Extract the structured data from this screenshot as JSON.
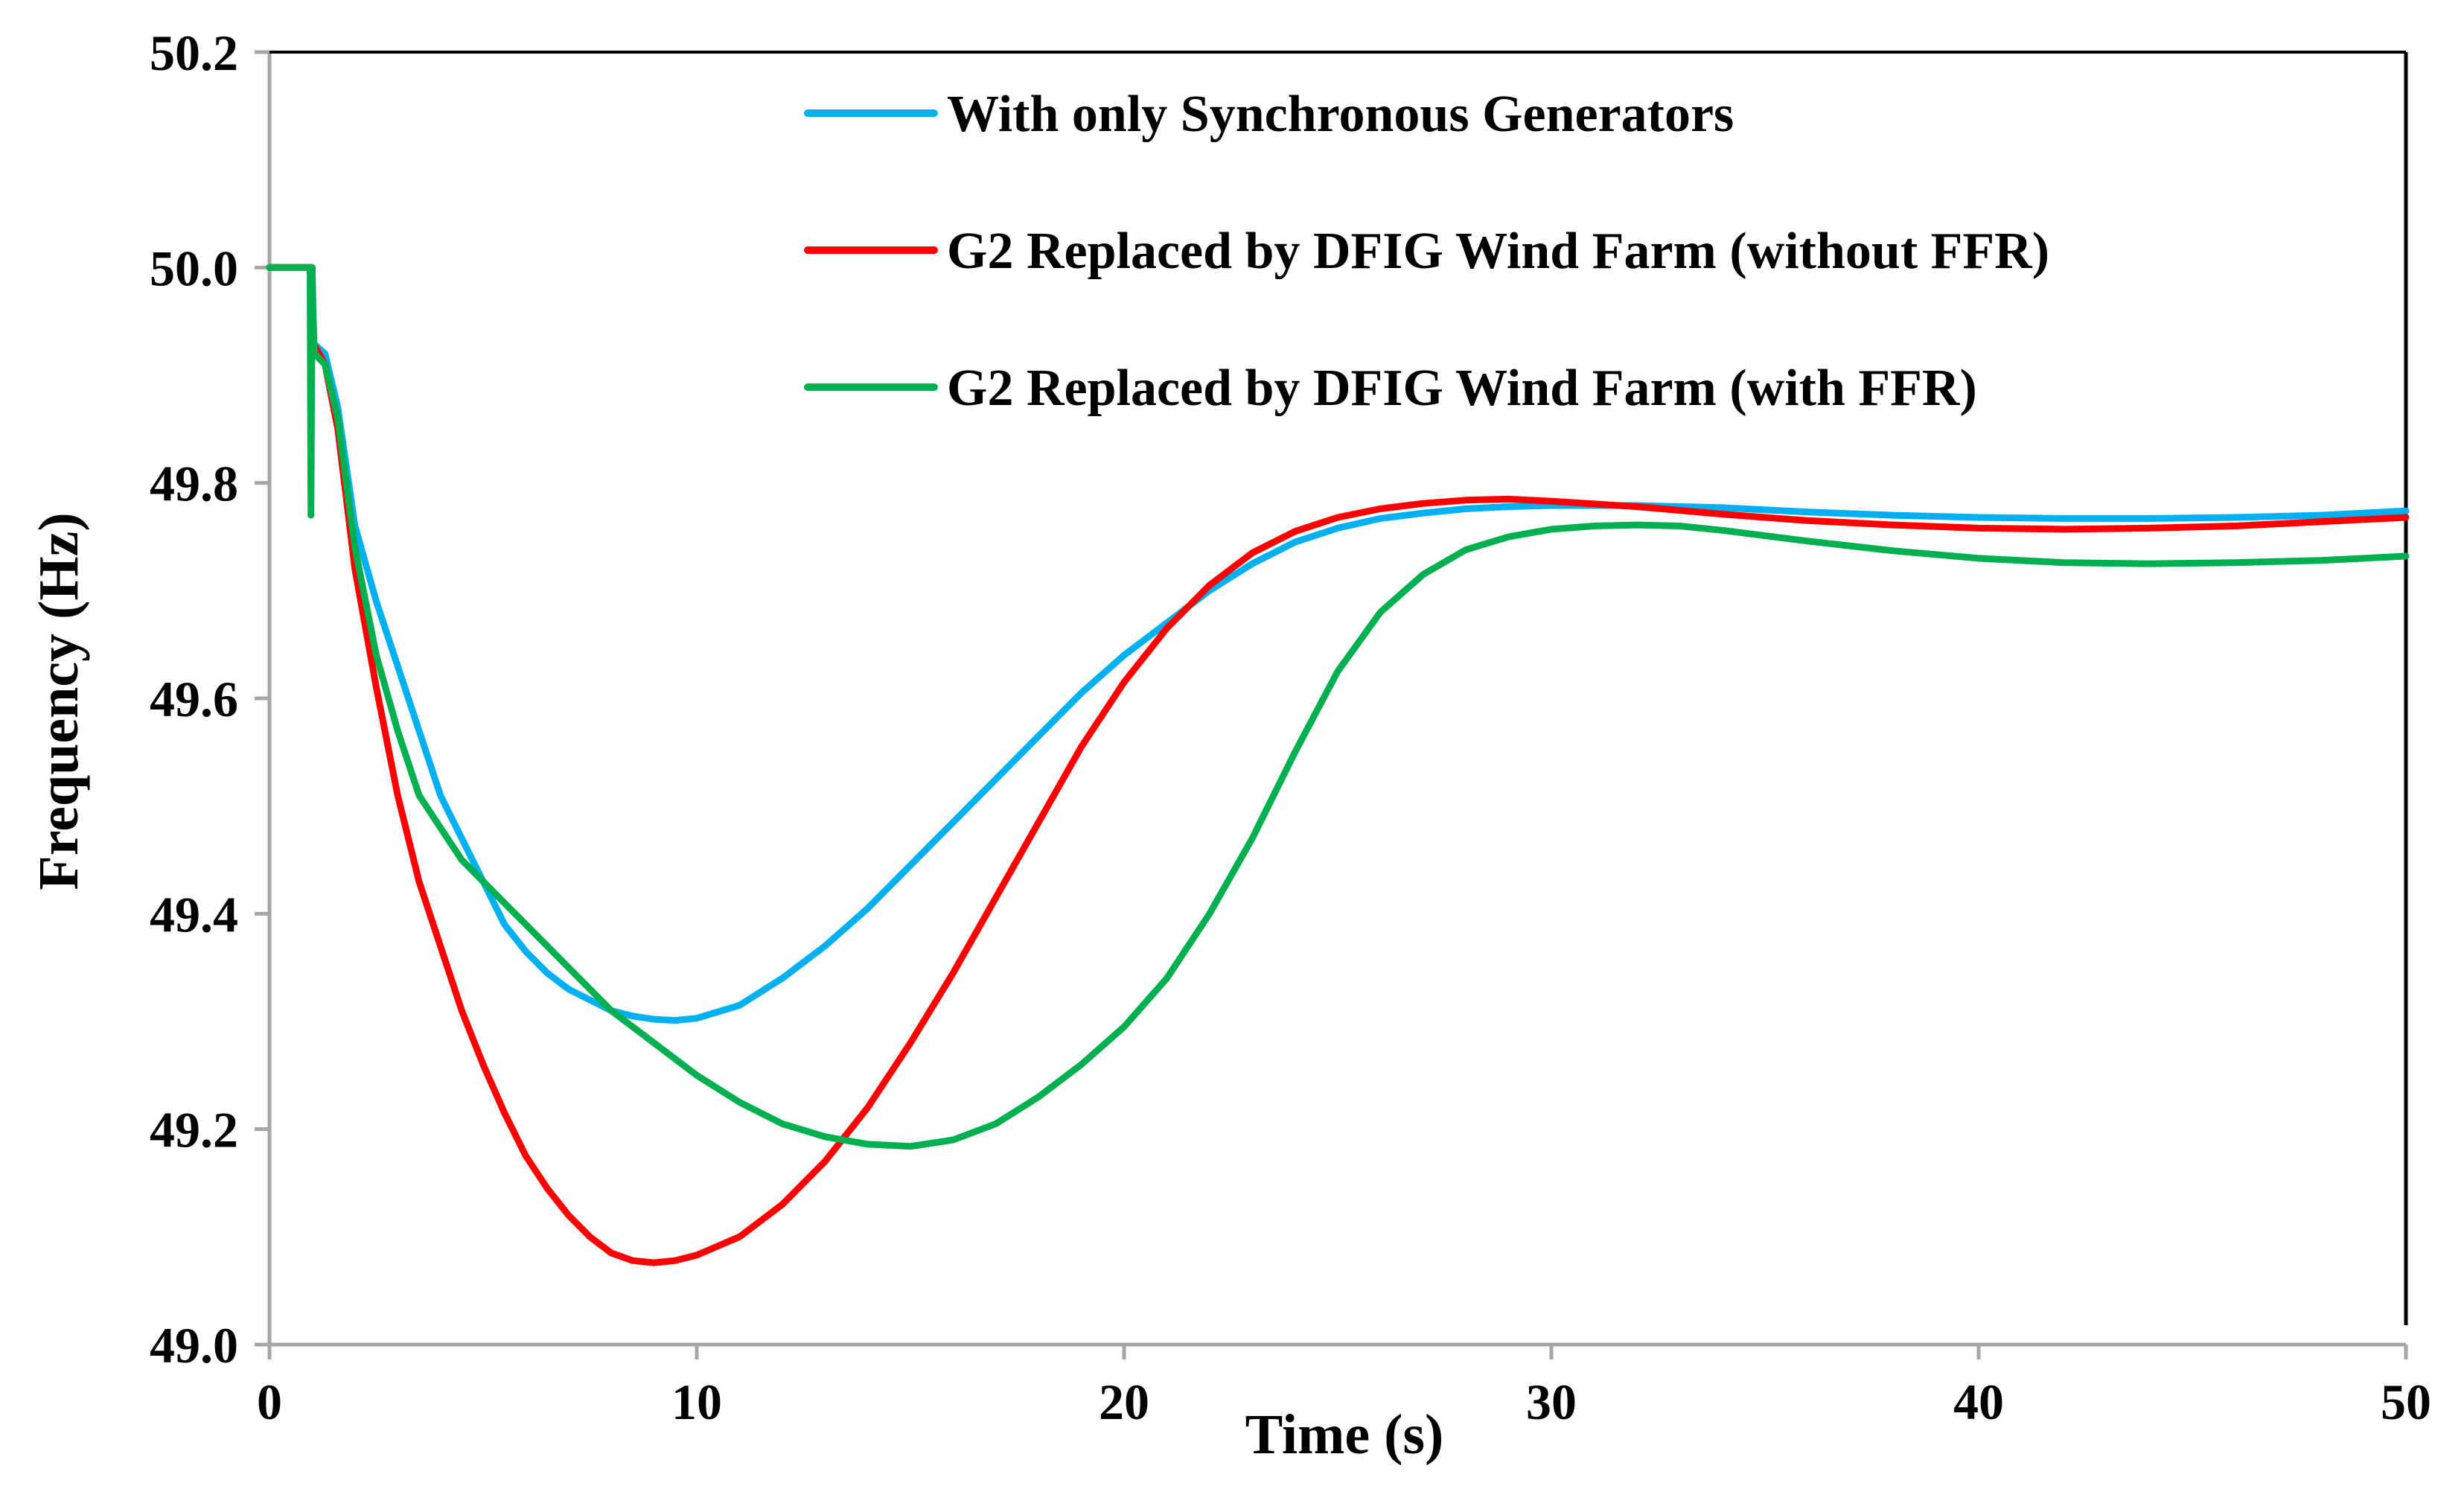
{
  "chart_data": {
    "type": "line",
    "title": "",
    "xlabel": "Time (s)",
    "ylabel": "Frequency (Hz)",
    "xlim": [
      0,
      50
    ],
    "ylim": [
      49.0,
      50.2
    ],
    "xticks": [
      0,
      10,
      20,
      30,
      40,
      50
    ],
    "xtick_labels": [
      "0",
      "10",
      "20",
      "30",
      "40",
      "50"
    ],
    "yticks": [
      49.0,
      49.2,
      49.4,
      49.6,
      49.8,
      50.0,
      50.2
    ],
    "ytick_labels": [
      "49.0",
      "49.2",
      "49.4",
      "49.6",
      "49.8",
      "50.0",
      "50.2"
    ],
    "grid": false,
    "legend_position": "top-right",
    "series": [
      {
        "name": "With only Synchronous Generators",
        "color": "#00B0F0",
        "x": [
          0,
          1.0,
          1.02,
          1.3,
          1.6,
          2.0,
          2.5,
          3.0,
          3.5,
          4.0,
          4.5,
          5.0,
          5.5,
          6.0,
          6.5,
          7.0,
          7.5,
          8.0,
          8.5,
          9.0,
          9.5,
          10.0,
          11.0,
          12.0,
          13.0,
          14.0,
          15.0,
          16.0,
          17.0,
          18.0,
          19.0,
          20.0,
          21.0,
          22.0,
          23.0,
          24.0,
          25.0,
          26.0,
          27.0,
          28.0,
          29.0,
          30.0,
          32.0,
          34.0,
          36.0,
          38.0,
          40.0,
          42.0,
          44.0,
          46.0,
          48.0,
          50.0
        ],
        "values": [
          50.0,
          50.0,
          49.93,
          49.92,
          49.87,
          49.76,
          49.69,
          49.63,
          49.57,
          49.51,
          49.47,
          49.43,
          49.39,
          49.365,
          49.345,
          49.33,
          49.32,
          49.31,
          49.305,
          49.302,
          49.301,
          49.303,
          49.315,
          49.34,
          49.37,
          49.405,
          49.445,
          49.485,
          49.525,
          49.565,
          49.605,
          49.64,
          49.67,
          49.7,
          49.725,
          49.745,
          49.758,
          49.767,
          49.772,
          49.776,
          49.778,
          49.779,
          49.779,
          49.777,
          49.773,
          49.77,
          49.768,
          49.767,
          49.767,
          49.768,
          49.77,
          49.774
        ]
      },
      {
        "name": "G2 Replaced by DFIG Wind Farm (without FFR)",
        "color": "#FF0000",
        "x": [
          0,
          1.0,
          1.02,
          1.3,
          1.6,
          2.0,
          2.5,
          3.0,
          3.5,
          4.0,
          4.5,
          5.0,
          5.5,
          6.0,
          6.5,
          7.0,
          7.5,
          8.0,
          8.5,
          9.0,
          9.5,
          10.0,
          11.0,
          12.0,
          13.0,
          14.0,
          15.0,
          16.0,
          17.0,
          18.0,
          19.0,
          20.0,
          21.0,
          22.0,
          23.0,
          24.0,
          25.0,
          26.0,
          27.0,
          28.0,
          29.0,
          30.0,
          32.0,
          34.0,
          36.0,
          38.0,
          40.0,
          42.0,
          44.0,
          46.0,
          48.0,
          50.0
        ],
        "values": [
          50.0,
          50.0,
          49.93,
          49.91,
          49.85,
          49.72,
          49.61,
          49.51,
          49.43,
          49.37,
          49.31,
          49.26,
          49.215,
          49.175,
          49.145,
          49.12,
          49.1,
          49.085,
          49.078,
          49.076,
          49.078,
          49.083,
          49.1,
          49.13,
          49.17,
          49.22,
          49.28,
          49.345,
          49.415,
          49.485,
          49.555,
          49.615,
          49.665,
          49.705,
          49.735,
          49.755,
          49.768,
          49.776,
          49.781,
          49.784,
          49.785,
          49.783,
          49.778,
          49.771,
          49.765,
          49.761,
          49.758,
          49.757,
          49.758,
          49.76,
          49.764,
          49.768
        ]
      },
      {
        "name": "G2 Replaced by DFIG Wind Farm (with FFR)",
        "color": "#00B050",
        "x": [
          0,
          0.95,
          0.97,
          1.0,
          1.02,
          1.05,
          1.3,
          1.6,
          2.0,
          2.5,
          3.0,
          3.5,
          4.0,
          4.5,
          5.0,
          5.5,
          6.0,
          6.5,
          7.0,
          7.5,
          8.0,
          8.5,
          9.0,
          9.5,
          10.0,
          11.0,
          12.0,
          13.0,
          14.0,
          15.0,
          16.0,
          17.0,
          18.0,
          19.0,
          20.0,
          21.0,
          22.0,
          23.0,
          24.0,
          25.0,
          26.0,
          27.0,
          28.0,
          29.0,
          30.0,
          31.0,
          32.0,
          33.0,
          34.0,
          36.0,
          38.0,
          40.0,
          42.0,
          44.0,
          46.0,
          48.0,
          50.0
        ],
        "values": [
          50.0,
          50.0,
          49.77,
          50.0,
          49.96,
          49.92,
          49.91,
          49.86,
          49.74,
          49.64,
          49.57,
          49.51,
          49.48,
          49.45,
          49.43,
          49.41,
          49.39,
          49.37,
          49.35,
          49.33,
          49.31,
          49.295,
          49.28,
          49.265,
          49.25,
          49.225,
          49.205,
          49.193,
          49.186,
          49.184,
          49.19,
          49.205,
          49.23,
          49.26,
          49.295,
          49.34,
          49.4,
          49.47,
          49.55,
          49.625,
          49.68,
          49.715,
          49.738,
          49.75,
          49.757,
          49.76,
          49.761,
          49.76,
          49.756,
          49.746,
          49.737,
          49.73,
          49.726,
          49.725,
          49.726,
          49.728,
          49.732
        ]
      }
    ]
  }
}
